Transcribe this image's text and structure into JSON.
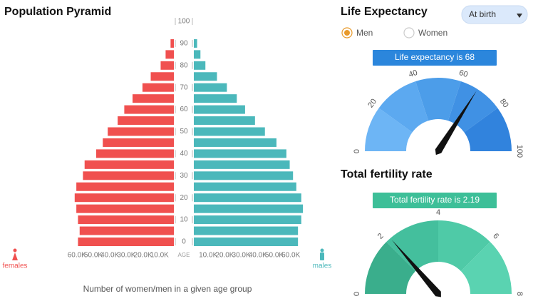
{
  "chart_data": [
    {
      "type": "pyramid",
      "xlabel": "Number of women/men in a given age group",
      "ylabel": "AGE",
      "categories": [
        0,
        5,
        10,
        15,
        20,
        25,
        30,
        35,
        40,
        45,
        50,
        55,
        60,
        65,
        70,
        75,
        80,
        85,
        90
      ],
      "series": [
        {
          "name": "females",
          "color": "#f0504f",
          "values": [
            58000,
            57000,
            58000,
            59000,
            60000,
            59000,
            55000,
            54000,
            47000,
            43000,
            40000,
            34000,
            30000,
            25000,
            19000,
            14000,
            8000,
            5000,
            2000
          ]
        },
        {
          "name": "males",
          "color": "#4bb8bb",
          "values": [
            63000,
            63000,
            65000,
            66000,
            65000,
            62000,
            60000,
            58000,
            56000,
            50000,
            43000,
            37000,
            31000,
            26000,
            20000,
            14000,
            7000,
            4000,
            2000
          ]
        }
      ],
      "xlim": [
        0,
        70000
      ],
      "xticks": [
        {
          "value": 60000,
          "label": "60.0K"
        },
        {
          "value": 50000,
          "label": "50.0K"
        },
        {
          "value": 40000,
          "label": "40.0K"
        },
        {
          "value": 30000,
          "label": "30.0K"
        },
        {
          "value": 20000,
          "label": "20.0K"
        },
        {
          "value": 10000,
          "label": "10.0K"
        }
      ],
      "x2ticks": [
        {
          "value": 10000,
          "label": "10.0K"
        },
        {
          "value": 20000,
          "label": "20.0K"
        },
        {
          "value": 30000,
          "label": "30.0K"
        },
        {
          "value": 40000,
          "label": "40.0K"
        },
        {
          "value": 50000,
          "label": "50.0K"
        },
        {
          "value": 60000,
          "label": "60.0K"
        }
      ],
      "ylim": [
        0,
        100
      ],
      "yticks": [
        0,
        10,
        20,
        30,
        40,
        50,
        60,
        70,
        80,
        90,
        100
      ],
      "title": "Population Pyramid"
    },
    {
      "type": "gauge",
      "title": "Life Expectancy",
      "value": 68,
      "value_label": "Life expectancy is 68",
      "ylim": [
        0,
        100
      ],
      "yticks": [
        0,
        20,
        40,
        60,
        80,
        100
      ],
      "label_color": "#2b86dc",
      "colors": [
        "#6db5f5",
        "#5ca9f0",
        "#4c9de9",
        "#4091e4",
        "#3183dd"
      ]
    },
    {
      "type": "gauge",
      "title": "Total fertility rate",
      "value": 2.19,
      "value_label": "Total fertility rate is 2.19",
      "ylim": [
        0,
        8
      ],
      "yticks": [
        0,
        2,
        4,
        6,
        8
      ],
      "label_color": "#3dbf98",
      "colors": [
        "#3aae8c",
        "#44bf9d",
        "#4fcaa7",
        "#5ad3b1"
      ]
    }
  ],
  "controls": {
    "dropdown": "At birth",
    "options": [
      "Men",
      "Women"
    ],
    "selected": 0
  }
}
